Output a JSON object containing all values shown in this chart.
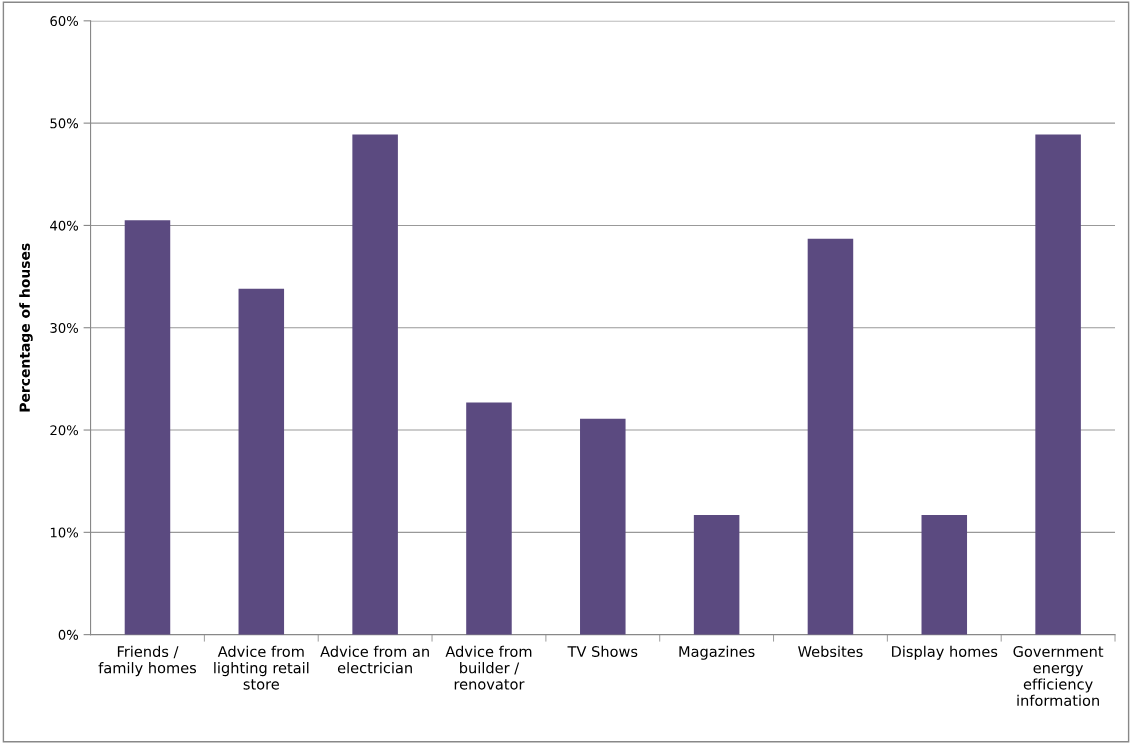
{
  "chart_data": {
    "type": "bar",
    "ylabel": "Percentage of houses",
    "categories": [
      "Friends /\nfamily homes",
      "Advice from\nlighting retail\nstore",
      "Advice from an\nelectrician",
      "Advice from\nbuilder /\nrenovator",
      "TV Shows",
      "Magazines",
      "Websites",
      "Display homes",
      "Government\nenergy\nefficiency\ninformation"
    ],
    "values": [
      40.5,
      33.8,
      48.9,
      22.7,
      21.1,
      11.7,
      38.7,
      11.7,
      48.9
    ],
    "color": "#5b4a80",
    "ylim": [
      0,
      60
    ],
    "yticks": [
      {
        "value": 0,
        "label": "0%"
      },
      {
        "value": 10,
        "label": "10%"
      },
      {
        "value": 20,
        "label": "20%"
      },
      {
        "value": 30,
        "label": "30%"
      },
      {
        "value": 40,
        "label": "40%"
      },
      {
        "value": 50,
        "label": "50%"
      },
      {
        "value": 60,
        "label": "60%"
      }
    ],
    "grid": "y",
    "legend": false
  }
}
